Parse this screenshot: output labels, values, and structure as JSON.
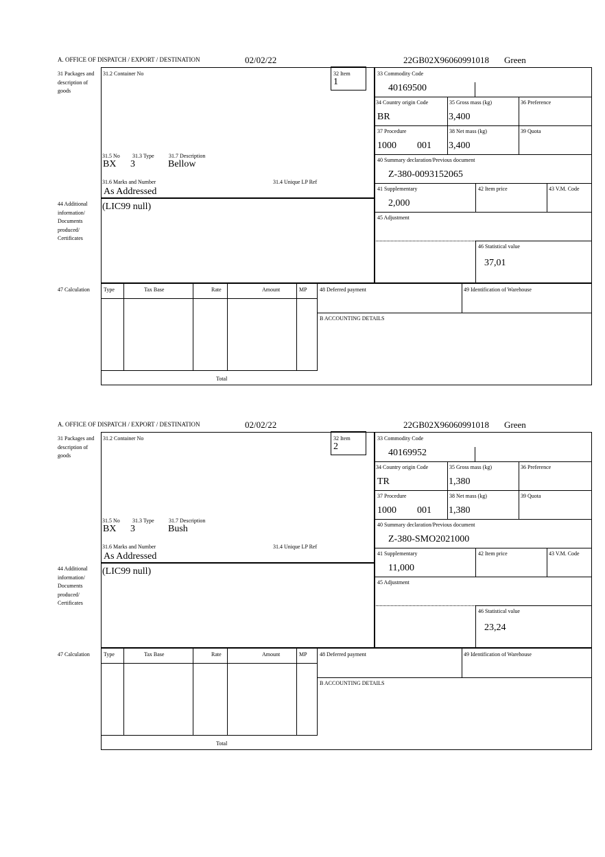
{
  "labels": {
    "office": "A.  OFFICE OF DISPATCH / EXPORT / DESTINATION",
    "packages": "31 Packages and description of goods",
    "container": "31.2 Container No",
    "item": "32 Item",
    "commodity": "33 Commodity Code",
    "country": "34 Country origin Code",
    "gross": "35 Gross mass (kg)",
    "preference": "36 Preference",
    "procedure": "37 Procedure",
    "net": "38 Net mass (kg)",
    "quota": "39 Quota",
    "summary": "40 Summary declaration/Previous document",
    "supplementary": "41 Supplementary",
    "item_price": "42 Item price",
    "vm_code": "43 V.M. Code",
    "adjustment": "45 Adjustment",
    "statistical": "46 Statistical value",
    "no": "31.5 No",
    "type": "31.3 Type",
    "description": "31.7 Description",
    "marks": "31.6 Marks and Number",
    "unique_ref": "31.4 Unique LP Ref",
    "additional": "44 Additional information/ Documents produced/ Certificates",
    "calculation": "47 Calculation",
    "calc_cols": [
      "Type",
      "Tax Base",
      "Rate",
      "Amount",
      "MP"
    ],
    "total": "Total",
    "deferred": "48 Deferred payment",
    "warehouse": "49 Identification of Warehouse",
    "accounting": "B ACCOUNTING DETAILS"
  },
  "items": [
    {
      "date": "02/02/22",
      "mrn": "22GB02X96060991018",
      "route": "Green",
      "item_no": "1",
      "commodity_code": "40169500",
      "country": "BR",
      "gross_mass": "3,400",
      "procedure": "1000",
      "procedure_add": "001",
      "net_mass": "3,400",
      "summary_doc": "Z-380-0093152065",
      "supplementary": "2,000",
      "statistical_value": "37,01",
      "pkg_kind": "BX",
      "pkg_count": "3",
      "description": "Bellow",
      "marks": "As Addressed",
      "additional_info": "(LIC99 null)"
    },
    {
      "date": "02/02/22",
      "mrn": "22GB02X96060991018",
      "route": "Green",
      "item_no": "2",
      "commodity_code": "40169952",
      "country": "TR",
      "gross_mass": "1,380",
      "procedure": "1000",
      "procedure_add": "001",
      "net_mass": "1,380",
      "summary_doc": "Z-380-SMO2021000",
      "supplementary": "11,000",
      "statistical_value": "23,24",
      "pkg_kind": "BX",
      "pkg_count": "3",
      "description": "Bush",
      "marks": "As Addressed",
      "additional_info": "(LIC99 null)"
    }
  ]
}
